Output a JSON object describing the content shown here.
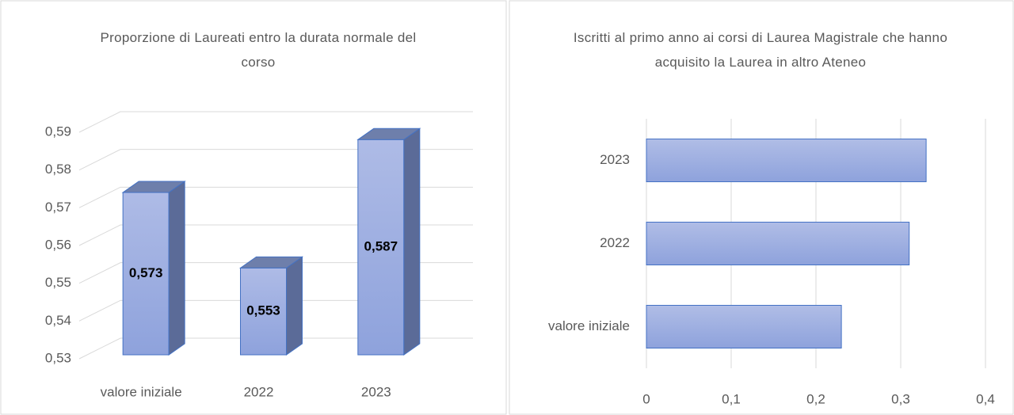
{
  "chart_data": [
    {
      "type": "bar",
      "three_d": true,
      "title": "Proporzione di Laureati entro la durata normale del corso",
      "categories": [
        "valore iniziale",
        "2022",
        "2023"
      ],
      "values": [
        0.573,
        0.553,
        0.587
      ],
      "value_labels": [
        "0,573",
        "0,553",
        "0,587"
      ],
      "color": "#9aace0",
      "ylim": [
        0.53,
        0.59
      ],
      "yticks": [
        {
          "value": 0.53,
          "label": "0,53"
        },
        {
          "value": 0.54,
          "label": "0,54"
        },
        {
          "value": 0.55,
          "label": "0,55"
        },
        {
          "value": 0.56,
          "label": "0,56"
        },
        {
          "value": 0.57,
          "label": "0,57"
        },
        {
          "value": 0.58,
          "label": "0,58"
        },
        {
          "value": 0.59,
          "label": "0,59"
        }
      ],
      "grid": true
    },
    {
      "type": "barh",
      "title": "Iscritti al primo anno ai corsi di Laurea Magistrale che hanno acquisito la Laurea in altro Ateneo",
      "categories": [
        "valore iniziale",
        "2022",
        "2023"
      ],
      "values": [
        0.23,
        0.31,
        0.33
      ],
      "color": "#9aace0",
      "xlim": [
        0,
        0.4
      ],
      "xticks": [
        0,
        {
          "value": 0.1,
          "label": "0,1"
        },
        {
          "value": 0.2,
          "label": "0,2"
        },
        {
          "value": 0.3,
          "label": "0,3"
        },
        {
          "value": 0.4,
          "label": "0,4"
        }
      ],
      "grid": true
    }
  ]
}
